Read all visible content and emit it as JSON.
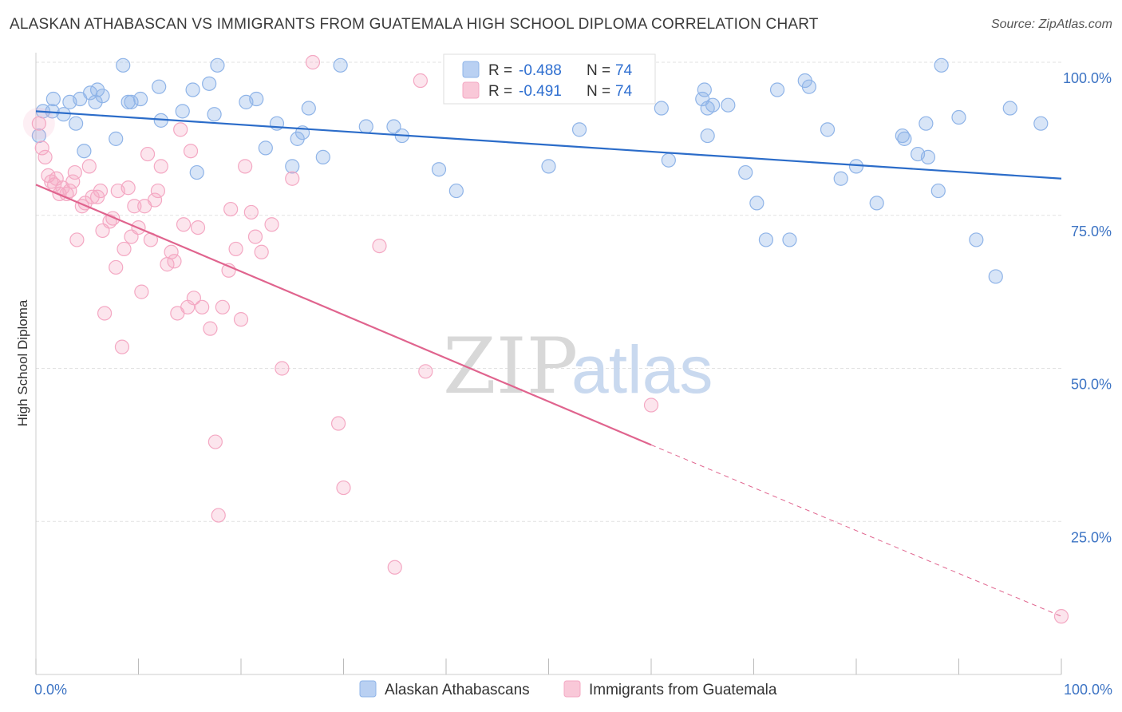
{
  "title": "ALASKAN ATHABASCAN VS IMMIGRANTS FROM GUATEMALA HIGH SCHOOL DIPLOMA CORRELATION CHART",
  "source": "Source: ZipAtlas.com",
  "watermark": {
    "zip": "ZIP",
    "atlas": "atlas"
  },
  "chart_data": {
    "type": "scatter",
    "title": "ALASKAN ATHABASCAN VS IMMIGRANTS FROM GUATEMALA HIGH SCHOOL DIPLOMA CORRELATION CHART",
    "xlabel": "",
    "ylabel": "High School Diploma",
    "xlim": [
      0,
      100
    ],
    "ylim": [
      0,
      100
    ],
    "x_ticks": [
      0,
      100
    ],
    "x_tick_labels": [
      "0.0%",
      "100.0%"
    ],
    "y_ticks": [
      25,
      50,
      75,
      100
    ],
    "y_tick_labels": [
      "25.0%",
      "50.0%",
      "75.0%",
      "100.0%"
    ],
    "grid": true,
    "legend_position": "top-center",
    "legend": [
      {
        "r_label": "R =",
        "r_value": "-0.488",
        "n_label": "N =",
        "n_value": "74"
      },
      {
        "r_label": "R =",
        "r_value": "-0.491",
        "n_label": "N =",
        "n_value": "74"
      }
    ],
    "series": [
      {
        "name": "Alaskan Athabascans",
        "color": "#8fb4e8",
        "line_color": "#2b6cc9",
        "trend": {
          "x": [
            0,
            100
          ],
          "y": [
            92,
            81
          ]
        },
        "points": [
          [
            0.3,
            88
          ],
          [
            0.7,
            92
          ],
          [
            1.6,
            92
          ],
          [
            1.7,
            94
          ],
          [
            2.7,
            91.5
          ],
          [
            3.3,
            93.5
          ],
          [
            3.9,
            90
          ],
          [
            4.3,
            94
          ],
          [
            4.7,
            85.5
          ],
          [
            5.3,
            95
          ],
          [
            5.8,
            93.5
          ],
          [
            6.0,
            95.5
          ],
          [
            6.5,
            94.5
          ],
          [
            7.8,
            87.5
          ],
          [
            8.5,
            99.5
          ],
          [
            9.0,
            93.5
          ],
          [
            9.3,
            93.5
          ],
          [
            10.2,
            94
          ],
          [
            12.0,
            96
          ],
          [
            12.2,
            90.5
          ],
          [
            14.3,
            92
          ],
          [
            15.3,
            95.5
          ],
          [
            15.7,
            82
          ],
          [
            16.9,
            96.5
          ],
          [
            17.4,
            91.5
          ],
          [
            17.7,
            99.5
          ],
          [
            20.5,
            93.5
          ],
          [
            21.5,
            94
          ],
          [
            22.4,
            86
          ],
          [
            23.5,
            90
          ],
          [
            25.0,
            83
          ],
          [
            25.5,
            87.5
          ],
          [
            26.0,
            88.5
          ],
          [
            26.6,
            92.5
          ],
          [
            28.0,
            84.5
          ],
          [
            29.7,
            99.5
          ],
          [
            32.2,
            89.5
          ],
          [
            34.9,
            89.5
          ],
          [
            35.7,
            88
          ],
          [
            39.3,
            82.5
          ],
          [
            41.0,
            79
          ],
          [
            50.0,
            83
          ],
          [
            53.0,
            89
          ],
          [
            61.0,
            92.5
          ],
          [
            61.7,
            84
          ],
          [
            65.0,
            94
          ],
          [
            65.2,
            95.5
          ],
          [
            65.5,
            92.5
          ],
          [
            65.5,
            88
          ],
          [
            66.0,
            93
          ],
          [
            67.5,
            93
          ],
          [
            69.2,
            82
          ],
          [
            70.3,
            77
          ],
          [
            71.2,
            71
          ],
          [
            72.3,
            95.5
          ],
          [
            73.5,
            71
          ],
          [
            75.0,
            97
          ],
          [
            75.4,
            96
          ],
          [
            77.2,
            89
          ],
          [
            78.5,
            81
          ],
          [
            80.0,
            83
          ],
          [
            82.0,
            77
          ],
          [
            84.5,
            88
          ],
          [
            84.7,
            87.5
          ],
          [
            86.0,
            85
          ],
          [
            86.8,
            90
          ],
          [
            87.0,
            84.5
          ],
          [
            88.0,
            79
          ],
          [
            88.3,
            99.5
          ],
          [
            90.0,
            91
          ],
          [
            91.7,
            71
          ],
          [
            93.6,
            65
          ],
          [
            95.0,
            92.5
          ],
          [
            98.0,
            90
          ]
        ]
      },
      {
        "name": "Immigrants from Guatemala",
        "color": "#f4a8c3",
        "line_color": "#e0648e",
        "trend": {
          "x": [
            0,
            60
          ],
          "y": [
            80,
            37.5
          ]
        },
        "trend_dashed": {
          "x": [
            60,
            100
          ],
          "y": [
            37.5,
            9.5
          ]
        },
        "points": [
          [
            0.3,
            90
          ],
          [
            0.6,
            86
          ],
          [
            0.9,
            84.5
          ],
          [
            1.2,
            81.5
          ],
          [
            1.5,
            80.5
          ],
          [
            1.8,
            80
          ],
          [
            2.0,
            81
          ],
          [
            2.3,
            78.5
          ],
          [
            2.6,
            79.5
          ],
          [
            3.0,
            78.5
          ],
          [
            3.3,
            79
          ],
          [
            3.6,
            80.5
          ],
          [
            3.8,
            82
          ],
          [
            4.0,
            71
          ],
          [
            4.5,
            76.5
          ],
          [
            4.8,
            77
          ],
          [
            5.2,
            83
          ],
          [
            5.5,
            78
          ],
          [
            6.0,
            78
          ],
          [
            6.3,
            79
          ],
          [
            6.5,
            72.5
          ],
          [
            6.7,
            59
          ],
          [
            7.2,
            74
          ],
          [
            7.5,
            74.5
          ],
          [
            7.8,
            66.5
          ],
          [
            8.0,
            79
          ],
          [
            8.4,
            53.5
          ],
          [
            8.6,
            69.5
          ],
          [
            9.0,
            79.5
          ],
          [
            9.3,
            71.5
          ],
          [
            9.6,
            76.5
          ],
          [
            10.0,
            73
          ],
          [
            10.3,
            62.5
          ],
          [
            10.6,
            76.5
          ],
          [
            10.9,
            85
          ],
          [
            11.2,
            71
          ],
          [
            11.6,
            77.5
          ],
          [
            11.9,
            79
          ],
          [
            12.2,
            83
          ],
          [
            12.8,
            67
          ],
          [
            13.2,
            69
          ],
          [
            13.5,
            67.5
          ],
          [
            13.8,
            59
          ],
          [
            14.1,
            89
          ],
          [
            14.4,
            73.5
          ],
          [
            14.8,
            60
          ],
          [
            15.1,
            85.5
          ],
          [
            15.4,
            61.5
          ],
          [
            15.8,
            73
          ],
          [
            16.2,
            60
          ],
          [
            17.0,
            56.5
          ],
          [
            17.5,
            38
          ],
          [
            17.8,
            26
          ],
          [
            18.2,
            60
          ],
          [
            18.8,
            66
          ],
          [
            19.0,
            76
          ],
          [
            19.5,
            69.5
          ],
          [
            20.0,
            58
          ],
          [
            20.4,
            83
          ],
          [
            21.0,
            75.5
          ],
          [
            21.4,
            71.5
          ],
          [
            22.0,
            69
          ],
          [
            23.0,
            73.5
          ],
          [
            24.0,
            50
          ],
          [
            25.0,
            81
          ],
          [
            27.0,
            100
          ],
          [
            29.5,
            41
          ],
          [
            30.0,
            30.5
          ],
          [
            33.5,
            70
          ],
          [
            35.0,
            17.5
          ],
          [
            37.5,
            97
          ],
          [
            38.0,
            49.5
          ],
          [
            60.0,
            44
          ],
          [
            100.0,
            9.5
          ]
        ]
      }
    ]
  }
}
